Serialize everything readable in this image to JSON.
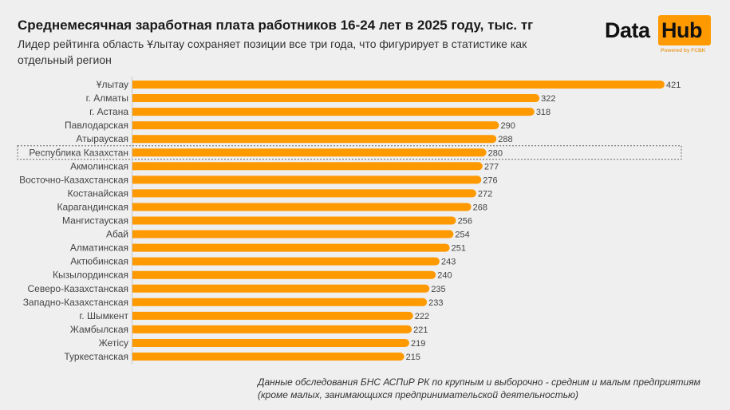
{
  "header": {
    "title": "Среднемесячная заработная плата работников 16-24 лет в 2025 году, тыс. тг",
    "subtitle": "Лидер рейтинга область Ұлытау сохраняет позиции все три года, что фигурирует в статистике как отдельный регион"
  },
  "logo": {
    "word1": "Data",
    "word2": "Hub",
    "tagline": "Powered by FCBK",
    "accent_color": "#ff9900"
  },
  "footnote": "Данные обследования БНС АСПиР РК по крупным и выборочно - средним и малым предприятиям (кроме малых, занимающихся предпринимательской деятельностью)",
  "colors": {
    "bar": "#ff9900",
    "highlight_border": "#666666"
  },
  "chart_data": {
    "type": "bar",
    "orientation": "horizontal",
    "title": "Среднемесячная заработная плата работников 16-24 лет в 2025 году, тыс. тг",
    "xlabel": "",
    "ylabel": "",
    "unit": "тыс. тг",
    "xlim": [
      0,
      421
    ],
    "grid": false,
    "highlighted_category": "Республика Казахстан",
    "categories": [
      "Ұлытау",
      "г. Алматы",
      "г. Астана",
      "Павлодарская",
      "Атырауская",
      "Республика Казахстан",
      "Акмолинская",
      "Восточно-Казахстанская",
      "Костанайская",
      "Карагандинская",
      "Мангистауская",
      "Абай",
      "Алматинская",
      "Актюбинская",
      "Кызылординская",
      "Северо-Казахстанская",
      "Западно-Казахстанская",
      "г. Шымкент",
      "Жамбылская",
      "Жетісу",
      "Туркестанская"
    ],
    "values": [
      421,
      322,
      318,
      290,
      288,
      280,
      277,
      276,
      272,
      268,
      256,
      254,
      251,
      243,
      240,
      235,
      233,
      222,
      221,
      219,
      215
    ]
  }
}
